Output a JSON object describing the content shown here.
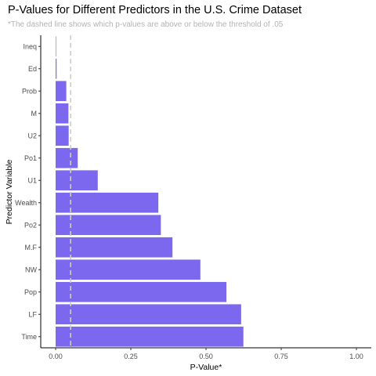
{
  "chart_data": {
    "type": "bar",
    "orientation": "horizontal",
    "title": "P-Values for Different Predictors in the U.S. Crime Dataset",
    "subtitle": "*The dashed line shows which p-values are above or below the threshold of .05",
    "xlabel": "P-Value*",
    "ylabel": "Predictor Variable",
    "xlim": [
      0,
      1
    ],
    "x_ticks": [
      0,
      0.25,
      0.5,
      0.75,
      1.0
    ],
    "x_tick_labels": [
      "0.00",
      "0.25",
      "0.50",
      "0.75",
      "1.00"
    ],
    "categories": [
      "Ineq",
      "Ed",
      "Prob",
      "M",
      "U2",
      "Po1",
      "U1",
      "Wealth",
      "Po2",
      "M.F",
      "NW",
      "Pop",
      "LF",
      "Time"
    ],
    "values": [
      0.0015,
      0.0032,
      0.0354,
      0.0426,
      0.0434,
      0.0735,
      0.1401,
      0.3415,
      0.3498,
      0.3885,
      0.4813,
      0.5678,
      0.6168,
      0.6242
    ],
    "threshold": 0.05,
    "bar_color": "#7b68ee",
    "threshold_color": "#cccccc",
    "axis_color": "#000000",
    "grid": false
  }
}
